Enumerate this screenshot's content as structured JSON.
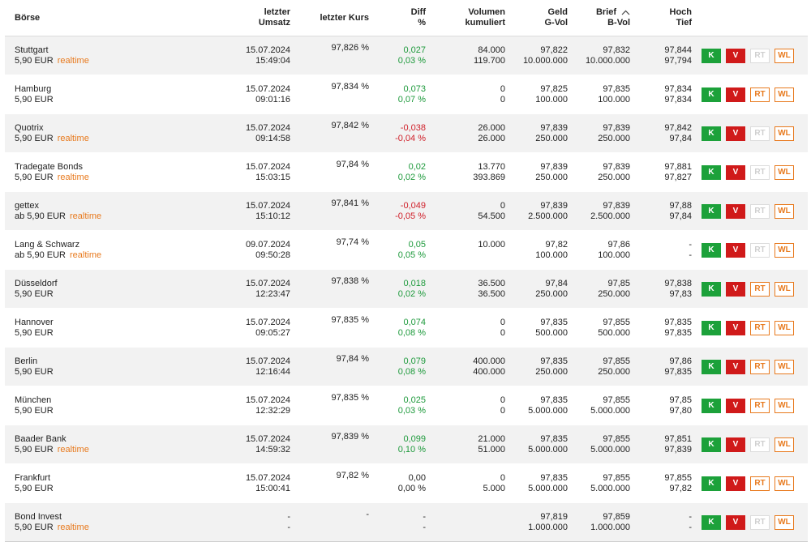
{
  "colors": {
    "positive": "#1e9a3c",
    "negative": "#d0202a",
    "accent": "#e87a1e",
    "buy": "#1ca13a",
    "sell": "#d01a1a"
  },
  "header": {
    "boerse": "Börse",
    "letzter_umsatz": [
      "letzter",
      "Umsatz"
    ],
    "letzter_kurs": "letzter Kurs",
    "diff": [
      "Diff",
      "%"
    ],
    "volumen": [
      "Volumen",
      "kumuliert"
    ],
    "geld": [
      "Geld",
      "G-Vol"
    ],
    "brief": [
      "Brief",
      "B-Vol"
    ],
    "brief_sort_icon": "chevron-up-icon",
    "hochtief": [
      "Hoch",
      "Tief"
    ]
  },
  "buttons": {
    "k": "K",
    "v": "V",
    "rt": "RT",
    "wl": "WL"
  },
  "rows": [
    {
      "name": "Stuttgart",
      "fee": "5,90 EUR",
      "rt": "realtime",
      "date": "15.07.2024",
      "time": "15:49:04",
      "kurs": "97,826 %",
      "diff_abs": "0,027",
      "diff_pct": "0,03 %",
      "dir": "pos",
      "vol1": "84.000",
      "vol2": "119.700",
      "geld": "97,822",
      "gvol": "10.000.000",
      "brief": "97,832",
      "bvol": "10.000.000",
      "hoch": "97,844",
      "tief": "97,794",
      "rt_enabled": false
    },
    {
      "name": "Hamburg",
      "fee": "5,90 EUR",
      "rt": "",
      "date": "15.07.2024",
      "time": "09:01:16",
      "kurs": "97,834 %",
      "diff_abs": "0,073",
      "diff_pct": "0,07 %",
      "dir": "pos",
      "vol1": "0",
      "vol2": "0",
      "geld": "97,825",
      "gvol": "100.000",
      "brief": "97,835",
      "bvol": "100.000",
      "hoch": "97,834",
      "tief": "97,834",
      "rt_enabled": true
    },
    {
      "name": "Quotrix",
      "fee": "5,90 EUR",
      "rt": "realtime",
      "date": "15.07.2024",
      "time": "09:14:58",
      "kurs": "97,842 %",
      "diff_abs": "-0,038",
      "diff_pct": "-0,04 %",
      "dir": "neg",
      "vol1": "26.000",
      "vol2": "26.000",
      "geld": "97,839",
      "gvol": "250.000",
      "brief": "97,839",
      "bvol": "250.000",
      "hoch": "97,842",
      "tief": "97,84",
      "rt_enabled": false
    },
    {
      "name": "Tradegate Bonds",
      "fee": "5,90 EUR",
      "rt": "realtime",
      "date": "15.07.2024",
      "time": "15:03:15",
      "kurs": "97,84 %",
      "diff_abs": "0,02",
      "diff_pct": "0,02 %",
      "dir": "pos",
      "vol1": "13.770",
      "vol2": "393.869",
      "geld": "97,839",
      "gvol": "250.000",
      "brief": "97,839",
      "bvol": "250.000",
      "hoch": "97,881",
      "tief": "97,827",
      "rt_enabled": false
    },
    {
      "name": "gettex",
      "fee": "ab 5,90 EUR",
      "rt": "realtime",
      "date": "15.07.2024",
      "time": "15:10:12",
      "kurs": "97,841 %",
      "diff_abs": "-0,049",
      "diff_pct": "-0,05 %",
      "dir": "neg",
      "vol1": "0",
      "vol2": "54.500",
      "geld": "97,839",
      "gvol": "2.500.000",
      "brief": "97,839",
      "bvol": "2.500.000",
      "hoch": "97,88",
      "tief": "97,84",
      "rt_enabled": false
    },
    {
      "name": "Lang & Schwarz",
      "fee": "ab 5,90 EUR",
      "rt": "realtime",
      "date": "09.07.2024",
      "time": "09:50:28",
      "kurs": "97,74 %",
      "diff_abs": "0,05",
      "diff_pct": "0,05 %",
      "dir": "pos",
      "vol1": "10.000",
      "vol2": "",
      "geld": "97,82",
      "gvol": "100.000",
      "brief": "97,86",
      "bvol": "100.000",
      "hoch": "-",
      "tief": "-",
      "rt_enabled": false
    },
    {
      "name": "Düsseldorf",
      "fee": "5,90 EUR",
      "rt": "",
      "date": "15.07.2024",
      "time": "12:23:47",
      "kurs": "97,838 %",
      "diff_abs": "0,018",
      "diff_pct": "0,02 %",
      "dir": "pos",
      "vol1": "36.500",
      "vol2": "36.500",
      "geld": "97,84",
      "gvol": "250.000",
      "brief": "97,85",
      "bvol": "250.000",
      "hoch": "97,838",
      "tief": "97,83",
      "rt_enabled": true
    },
    {
      "name": "Hannover",
      "fee": "5,90 EUR",
      "rt": "",
      "date": "15.07.2024",
      "time": "09:05:27",
      "kurs": "97,835 %",
      "diff_abs": "0,074",
      "diff_pct": "0,08 %",
      "dir": "pos",
      "vol1": "0",
      "vol2": "0",
      "geld": "97,835",
      "gvol": "500.000",
      "brief": "97,855",
      "bvol": "500.000",
      "hoch": "97,835",
      "tief": "97,835",
      "rt_enabled": true
    },
    {
      "name": "Berlin",
      "fee": "5,90 EUR",
      "rt": "",
      "date": "15.07.2024",
      "time": "12:16:44",
      "kurs": "97,84 %",
      "diff_abs": "0,079",
      "diff_pct": "0,08 %",
      "dir": "pos",
      "vol1": "400.000",
      "vol2": "400.000",
      "geld": "97,835",
      "gvol": "250.000",
      "brief": "97,855",
      "bvol": "250.000",
      "hoch": "97,86",
      "tief": "97,835",
      "rt_enabled": true
    },
    {
      "name": "München",
      "fee": "5,90 EUR",
      "rt": "",
      "date": "15.07.2024",
      "time": "12:32:29",
      "kurs": "97,835 %",
      "diff_abs": "0,025",
      "diff_pct": "0,03 %",
      "dir": "pos",
      "vol1": "0",
      "vol2": "0",
      "geld": "97,835",
      "gvol": "5.000.000",
      "brief": "97,855",
      "bvol": "5.000.000",
      "hoch": "97,85",
      "tief": "97,80",
      "rt_enabled": true
    },
    {
      "name": "Baader Bank",
      "fee": "5,90 EUR",
      "rt": "realtime",
      "date": "15.07.2024",
      "time": "14:59:32",
      "kurs": "97,839 %",
      "diff_abs": "0,099",
      "diff_pct": "0,10 %",
      "dir": "pos",
      "vol1": "21.000",
      "vol2": "51.000",
      "geld": "97,835",
      "gvol": "5.000.000",
      "brief": "97,855",
      "bvol": "5.000.000",
      "hoch": "97,851",
      "tief": "97,839",
      "rt_enabled": false
    },
    {
      "name": "Frankfurt",
      "fee": "5,90 EUR",
      "rt": "",
      "date": "15.07.2024",
      "time": "15:00:41",
      "kurs": "97,82 %",
      "diff_abs": "0,00",
      "diff_pct": "0,00 %",
      "dir": "zero",
      "vol1": "0",
      "vol2": "5.000",
      "geld": "97,835",
      "gvol": "5.000.000",
      "brief": "97,855",
      "bvol": "5.000.000",
      "hoch": "97,855",
      "tief": "97,82",
      "rt_enabled": true
    },
    {
      "name": "Bond Invest",
      "fee": "5,90 EUR",
      "rt": "realtime",
      "date": "-",
      "time": "-",
      "kurs": "-",
      "diff_abs": "-",
      "diff_pct": "-",
      "dir": "zero",
      "vol1": "",
      "vol2": "",
      "geld": "97,819",
      "gvol": "1.000.000",
      "brief": "97,859",
      "bvol": "1.000.000",
      "hoch": "-",
      "tief": "-",
      "rt_enabled": false
    }
  ]
}
